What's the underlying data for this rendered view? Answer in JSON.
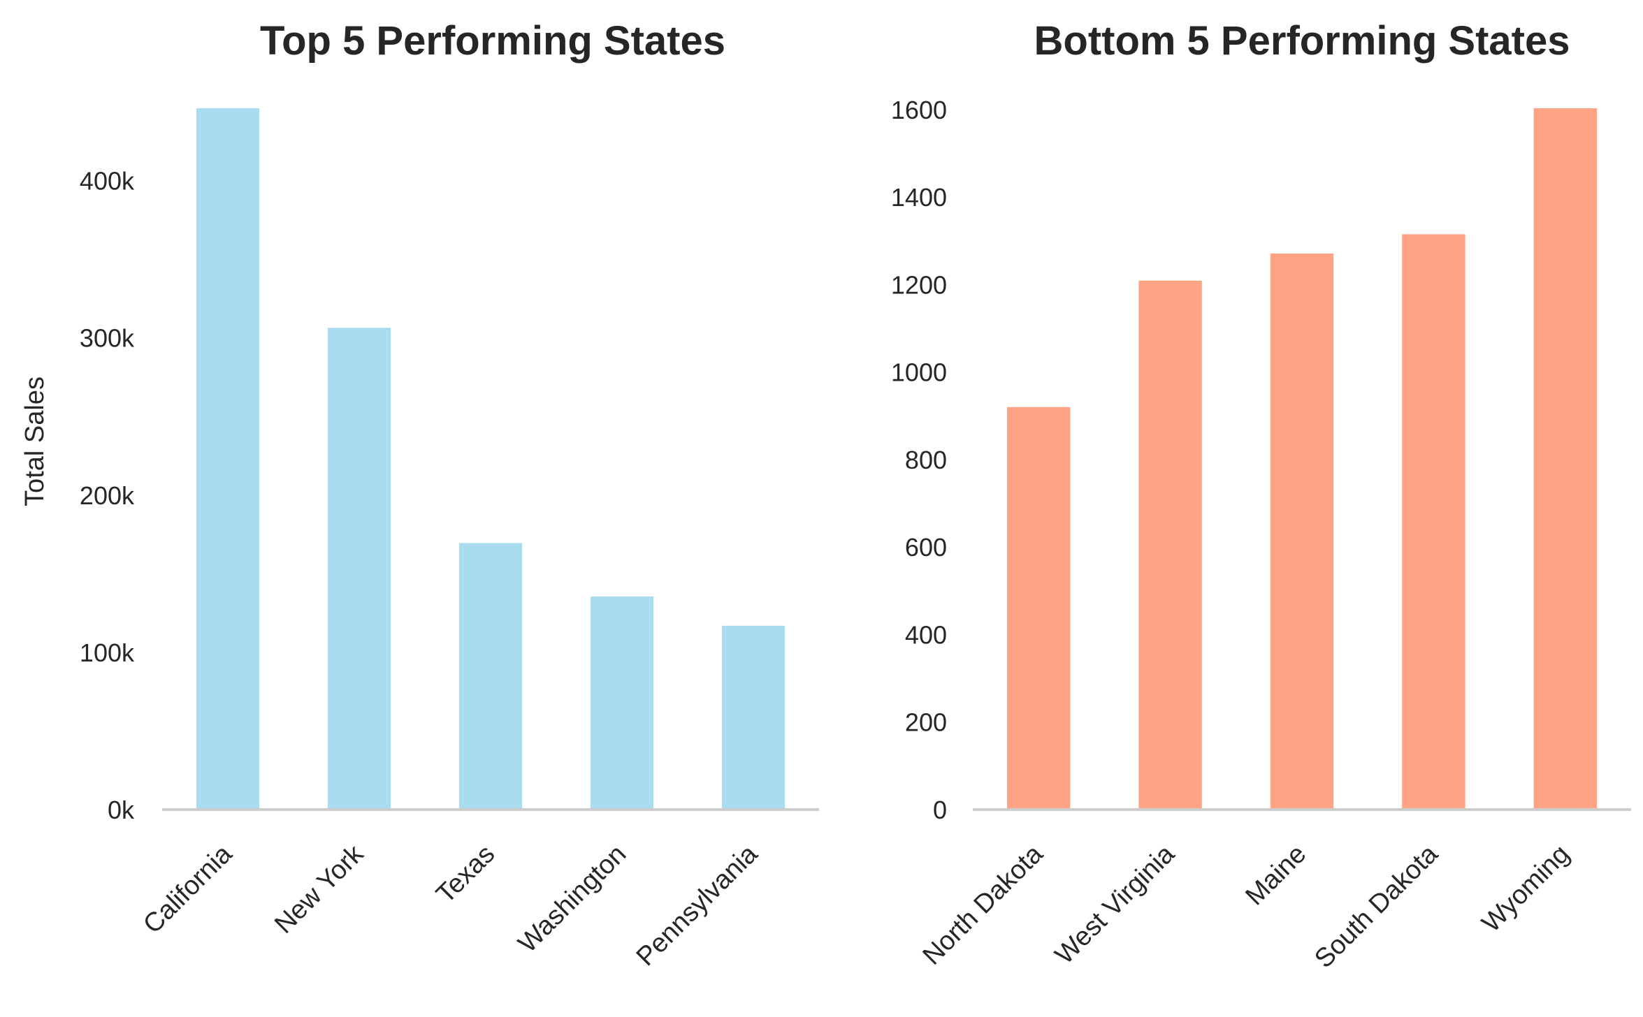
{
  "chart_data": [
    {
      "type": "bar",
      "title": "Top 5 Performing States",
      "xlabel": "",
      "ylabel": "Total Sales",
      "categories": [
        "California",
        "New York",
        "Texas",
        "Washington",
        "Pennsylvania"
      ],
      "values": [
        446000,
        306400,
        169500,
        135500,
        116900
      ],
      "ylim": [
        0,
        446000
      ],
      "yticks": [
        0,
        100000,
        200000,
        300000,
        400000
      ],
      "ytick_labels": [
        "0k",
        "100k",
        "200k",
        "300k",
        "400k"
      ],
      "color": "#aadcef",
      "grid": false
    },
    {
      "type": "bar",
      "title": "Bottom 5 Performing States",
      "xlabel": "",
      "ylabel": "",
      "categories": [
        "North Dakota",
        "West Virginia",
        "Maine",
        "South Dakota",
        "Wyoming"
      ],
      "values": [
        920,
        1209,
        1271,
        1315,
        1603
      ],
      "ylim": [
        0,
        1603
      ],
      "yticks": [
        0,
        200,
        400,
        600,
        800,
        1000,
        1200,
        1400,
        1600
      ],
      "ytick_labels": [
        "0",
        "200",
        "400",
        "600",
        "800",
        "1000",
        "1200",
        "1400",
        "1600"
      ],
      "color": "#ffa385",
      "grid": false
    }
  ]
}
